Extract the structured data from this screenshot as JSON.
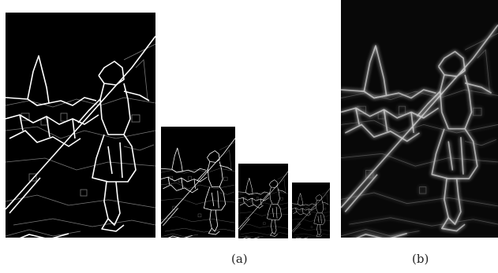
{
  "captions": {
    "a": "(a)",
    "b": "(b)"
  },
  "panels": {
    "a1": "edge-map-scale-1",
    "a2": "edge-map-scale-2",
    "a3": "edge-map-scale-3",
    "a4": "edge-map-scale-4",
    "b": "blurred-edge-map"
  },
  "colors": {
    "background": "#000000",
    "edge": "#ffffff",
    "faint_edge": "#8a8a8a"
  }
}
